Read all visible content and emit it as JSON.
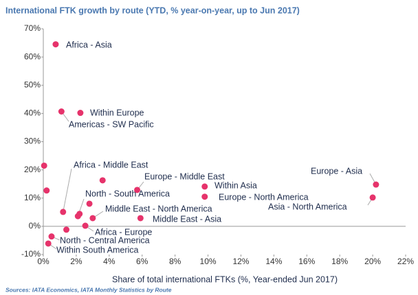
{
  "chart_data": {
    "type": "scatter",
    "title": "International FTK growth by route (YTD, % year-on-year, up to Jun 2017)",
    "x_label": "Share of total international FTKs (%, Year-ended Jun 2017)",
    "source": "Sources: IATA Economics, IATA Monthly Statistics by Route",
    "color": "#e6336b",
    "x": [
      0.75,
      2.25,
      1.1,
      0.05,
      0.2,
      1.2,
      1.4,
      2.1,
      2.2,
      2.8,
      3.0,
      3.6,
      5.7,
      5.9,
      2.55,
      9.8,
      9.8,
      20.2,
      20.0,
      0.5,
      0.3
    ],
    "values": [
      64.5,
      40.2,
      40.7,
      21.5,
      12.7,
      5.1,
      -1.2,
      3.6,
      4.4,
      8.0,
      2.9,
      16.3,
      12.9,
      2.9,
      0.2,
      14.1,
      10.5,
      14.8,
      10.2,
      -3.6,
      -6.1
    ],
    "point_labels": [
      "Africa - Asia",
      "Within Europe",
      "Americas - SW Pacific",
      null,
      null,
      "Africa - Middle East",
      null,
      "North - South America",
      null,
      null,
      "Middle East - North America",
      null,
      "Europe - Middle East",
      "Middle East - Asia",
      "Africa - Europe",
      "Within Asia",
      "Europe - North America",
      "Europe - Asia",
      "Asia - North America",
      "North - Central America",
      "Within South America"
    ],
    "xlim": [
      0,
      22
    ],
    "xticks": [
      {
        "value": 0,
        "label": "0%"
      },
      {
        "value": 2,
        "label": "2%"
      },
      {
        "value": 4,
        "label": "4%"
      },
      {
        "value": 6,
        "label": "6%"
      },
      {
        "value": 8,
        "label": "8%"
      },
      {
        "value": 10,
        "label": "10%"
      },
      {
        "value": 12,
        "label": "12%"
      },
      {
        "value": 14,
        "label": "14%"
      },
      {
        "value": 16,
        "label": "16%"
      },
      {
        "value": 18,
        "label": "18%"
      },
      {
        "value": 20,
        "label": "20%"
      },
      {
        "value": 22,
        "label": "22%"
      }
    ],
    "ylim": [
      -10,
      70
    ],
    "yticks": [
      {
        "value": -10,
        "label": "-10%"
      },
      {
        "value": 0,
        "label": "0%"
      },
      {
        "value": 10,
        "label": "10%"
      },
      {
        "value": 20,
        "label": "20%"
      },
      {
        "value": 30,
        "label": "30%"
      },
      {
        "value": 40,
        "label": "40%"
      },
      {
        "value": 50,
        "label": "50%"
      },
      {
        "value": 60,
        "label": "60%"
      },
      {
        "value": 70,
        "label": "70%"
      }
    ],
    "grid": false
  }
}
